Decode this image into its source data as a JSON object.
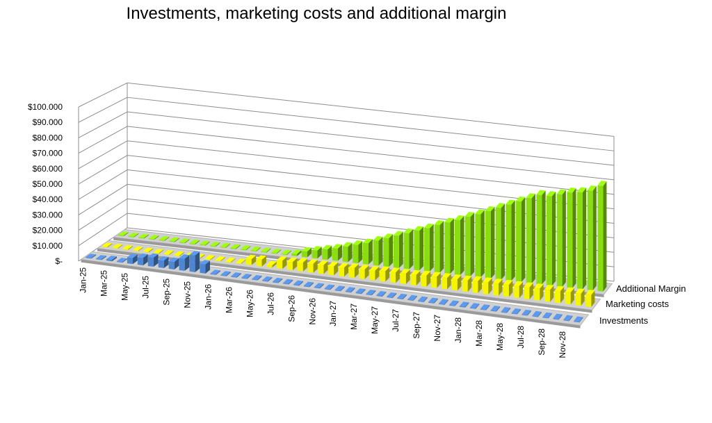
{
  "chart_data": {
    "type": "bar",
    "subtype": "3d-column",
    "title": "Investments, marketing costs and additional margin",
    "xlabel": "",
    "ylabel": "",
    "ylim": [
      0,
      100000
    ],
    "y_ticks": [
      0,
      10000,
      20000,
      30000,
      40000,
      50000,
      60000,
      70000,
      80000,
      90000,
      100000
    ],
    "y_tick_labels": [
      "$-",
      "$10.000",
      "$20.000",
      "$30.000",
      "$40.000",
      "$50.000",
      "$60.000",
      "$70.000",
      "$80.000",
      "$90.000",
      "$100.000"
    ],
    "x_tick_labels": [
      "Jan-25",
      "Mar-25",
      "May-25",
      "Jul-25",
      "Sep-25",
      "Nov-25",
      "Jan-26",
      "Mar-26",
      "May-26",
      "Jul-26",
      "Sep-26",
      "Nov-26",
      "Jan-27",
      "Mar-27",
      "May-27",
      "Jul-27",
      "Sep-27",
      "Nov-27",
      "Jan-28",
      "Mar-28",
      "May-28",
      "Jul-28",
      "Sep-28",
      "Nov-28"
    ],
    "categories": [
      "Jan-25",
      "Feb-25",
      "Mar-25",
      "Apr-25",
      "May-25",
      "Jun-25",
      "Jul-25",
      "Aug-25",
      "Sep-25",
      "Oct-25",
      "Nov-25",
      "Dec-25",
      "Jan-26",
      "Feb-26",
      "Mar-26",
      "Apr-26",
      "May-26",
      "Jun-26",
      "Jul-26",
      "Aug-26",
      "Sep-26",
      "Oct-26",
      "Nov-26",
      "Dec-26",
      "Jan-27",
      "Feb-27",
      "Mar-27",
      "Apr-27",
      "May-27",
      "Jun-27",
      "Jul-27",
      "Aug-27",
      "Sep-27",
      "Oct-27",
      "Nov-27",
      "Dec-27",
      "Jan-28",
      "Feb-28",
      "Mar-28",
      "Apr-28",
      "May-28",
      "Jun-28",
      "Jul-28",
      "Aug-28",
      "Sep-28",
      "Oct-28",
      "Nov-28",
      "Dec-28"
    ],
    "series": [
      {
        "name": "Investments",
        "color": "#4f86d1",
        "values": [
          500,
          500,
          1000,
          500,
          4000,
          5000,
          6000,
          5000,
          5000,
          8000,
          11000,
          6000,
          500,
          500,
          500,
          500,
          500,
          500,
          500,
          500,
          500,
          500,
          500,
          500,
          500,
          500,
          500,
          500,
          500,
          500,
          500,
          500,
          500,
          500,
          500,
          500,
          500,
          500,
          500,
          500,
          500,
          500,
          500,
          500,
          500,
          500,
          500,
          500
        ]
      },
      {
        "name": "Marketing costs",
        "color": "#f5f500",
        "values": [
          500,
          500,
          500,
          500,
          500,
          500,
          500,
          500,
          500,
          500,
          500,
          500,
          500,
          500,
          4000,
          4500,
          1500,
          5500,
          5500,
          6000,
          6000,
          6000,
          6000,
          6000,
          6500,
          6500,
          6500,
          7000,
          7000,
          7000,
          7000,
          7500,
          7500,
          7500,
          7500,
          7500,
          8000,
          8000,
          8000,
          8000,
          8000,
          8000,
          8000,
          8000,
          8000,
          8000,
          8000,
          8000
        ]
      },
      {
        "name": "Additional Margin",
        "color": "#8add10",
        "values": [
          500,
          500,
          500,
          500,
          500,
          500,
          500,
          500,
          500,
          500,
          500,
          500,
          500,
          500,
          500,
          500,
          500,
          1500,
          4000,
          5500,
          7000,
          8500,
          10500,
          12500,
          14500,
          17000,
          19500,
          22000,
          24500,
          27000,
          29500,
          32500,
          35000,
          37500,
          40500,
          43000,
          46000,
          49000,
          52000,
          55000,
          58000,
          61000,
          61000,
          63000,
          65000,
          66000,
          68000,
          72000
        ]
      }
    ]
  }
}
